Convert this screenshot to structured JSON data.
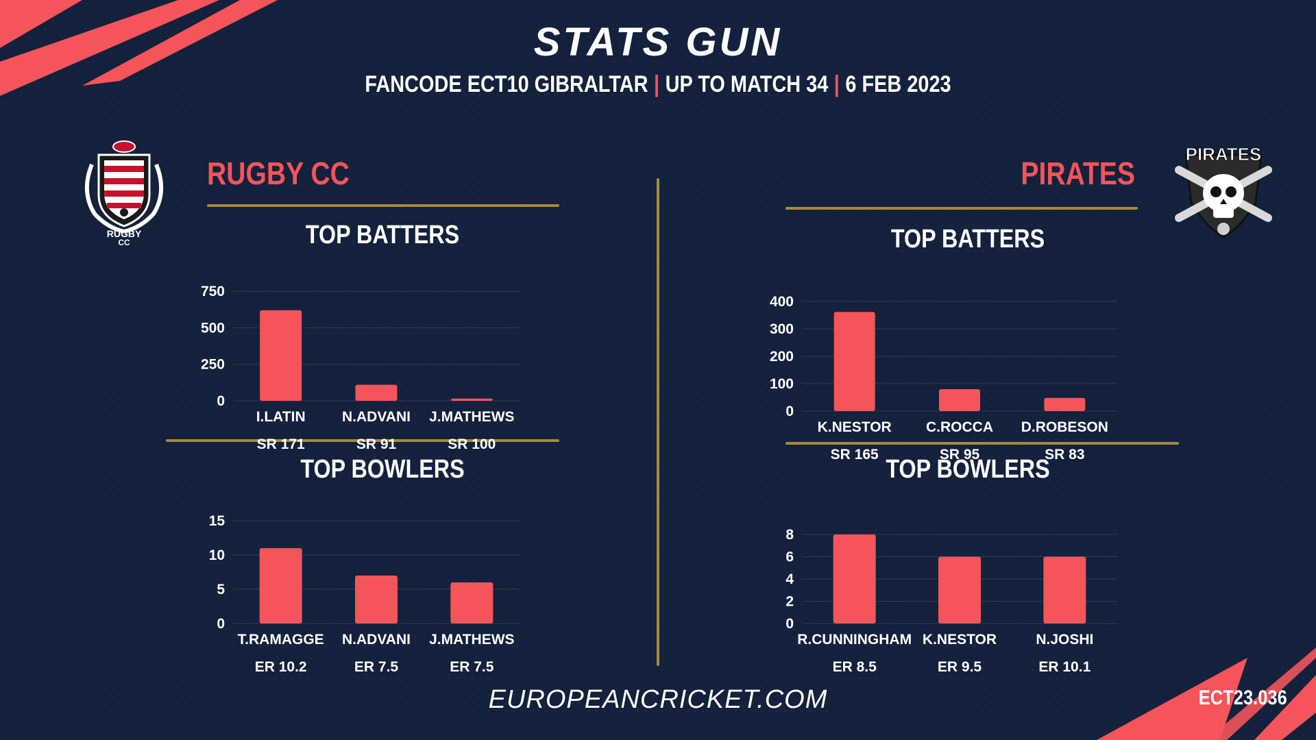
{
  "header": {
    "brand": "STATS GUN",
    "tournament": "FANCODE ECT10 GIBRALTAR",
    "progress": "UP TO MATCH  34",
    "date": "6 FEB 2023",
    "separator": "|"
  },
  "teams": {
    "left": {
      "name": "RUGBY CC",
      "logo_text": "RUGBY",
      "logo_subtext": "CC",
      "logo_icon": "rugby-cc-crest-icon"
    },
    "right": {
      "name": "PIRATES",
      "logo_text": "PIRATES",
      "logo_icon": "pirates-skull-shield-icon"
    }
  },
  "sections": {
    "left_batters_title": "TOP BATTERS",
    "left_bowlers_title": "TOP BOWLERS",
    "right_batters_title": "TOP BATTERS",
    "right_bowlers_title": "TOP BOWLERS"
  },
  "colors": {
    "bar": "#f4545a",
    "accent": "#f4545a",
    "gold": "#a8893c",
    "background": "#13213c"
  },
  "chart_data": [
    {
      "type": "bar",
      "title": "TOP BATTERS",
      "team": "RUGBY CC",
      "categories": [
        "I.LATIN",
        "N.ADVANI",
        "J.MATHEWS"
      ],
      "values": [
        620,
        110,
        15
      ],
      "stats": [
        "SR 171",
        "SR 91",
        "SR 100"
      ],
      "ylim": [
        0,
        750
      ],
      "yticks": [
        0,
        250,
        500,
        750
      ],
      "grid": true
    },
    {
      "type": "bar",
      "title": "TOP BOWLERS",
      "team": "RUGBY CC",
      "categories": [
        "T.RAMAGGE",
        "N.ADVANI",
        "J.MATHEWS"
      ],
      "values": [
        11,
        7,
        6
      ],
      "stats": [
        "ER 10.2",
        "ER 7.5",
        "ER 7.5"
      ],
      "ylim": [
        0,
        15
      ],
      "yticks": [
        0,
        5,
        10,
        15
      ],
      "grid": true
    },
    {
      "type": "bar",
      "title": "TOP BATTERS",
      "team": "PIRATES",
      "categories": [
        "K.NESTOR",
        "C.ROCCA",
        "D.ROBESON"
      ],
      "values": [
        362,
        80,
        48
      ],
      "stats": [
        "SR 165",
        "SR 95",
        "SR 83"
      ],
      "ylim": [
        0,
        400
      ],
      "yticks": [
        0,
        100,
        200,
        300,
        400
      ],
      "grid": true
    },
    {
      "type": "bar",
      "title": "TOP BOWLERS",
      "team": "PIRATES",
      "categories": [
        "R.CUNNINGHAM",
        "K.NESTOR",
        "N.JOSHI"
      ],
      "values": [
        8,
        6,
        6
      ],
      "stats": [
        "ER 8.5",
        "ER 9.5",
        "ER 10.1"
      ],
      "ylim": [
        0,
        8
      ],
      "yticks": [
        0,
        2,
        4,
        6,
        8
      ],
      "grid": true
    }
  ],
  "footer": {
    "website": "EUROPEANCRICKET.COM",
    "code": "ECT23.036"
  }
}
